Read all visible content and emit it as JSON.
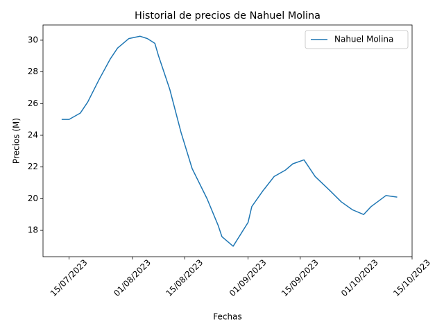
{
  "chart_data": {
    "type": "line",
    "title": "Historial de precios de Nahuel Molina",
    "x_label": "Fechas",
    "y_label": "Precios (M)",
    "x": [
      "2023-07-13",
      "2023-07-15",
      "2023-07-18",
      "2023-07-20",
      "2023-07-23",
      "2023-07-26",
      "2023-07-28",
      "2023-07-31",
      "2023-08-03",
      "2023-08-05",
      "2023-08-07",
      "2023-08-08",
      "2023-08-11",
      "2023-08-14",
      "2023-08-17",
      "2023-08-21",
      "2023-08-24",
      "2023-08-25",
      "2023-08-28",
      "2023-09-01",
      "2023-09-02",
      "2023-09-05",
      "2023-09-08",
      "2023-09-11",
      "2023-09-13",
      "2023-09-16",
      "2023-09-19",
      "2023-09-23",
      "2023-09-26",
      "2023-09-29",
      "2023-10-02",
      "2023-10-04",
      "2023-10-08",
      "2023-10-11"
    ],
    "series": [
      {
        "name": "Nahuel Molina",
        "color": "#1f77b4",
        "values": [
          25.0,
          25.0,
          25.4,
          26.1,
          27.5,
          28.8,
          29.5,
          30.1,
          30.25,
          30.1,
          29.8,
          29.0,
          26.9,
          24.2,
          21.9,
          20.0,
          18.3,
          17.6,
          17.0,
          18.5,
          19.5,
          20.5,
          21.4,
          21.8,
          22.2,
          22.45,
          21.4,
          20.5,
          19.8,
          19.3,
          19.0,
          19.5,
          20.2,
          20.1
        ]
      }
    ],
    "xlim": [
      "2023-07-08",
      "2023-10-15"
    ],
    "xticks": [
      {
        "value": "2023-07-15",
        "label": "15/07/2023"
      },
      {
        "value": "2023-08-01",
        "label": "01/08/2023"
      },
      {
        "value": "2023-08-15",
        "label": "15/08/2023"
      },
      {
        "value": "2023-09-01",
        "label": "01/09/2023"
      },
      {
        "value": "2023-09-15",
        "label": "15/09/2023"
      },
      {
        "value": "2023-10-01",
        "label": "01/10/2023"
      },
      {
        "value": "2023-10-15",
        "label": "15/10/2023"
      }
    ],
    "ylim": [
      16.34,
      30.96
    ],
    "yticks": [
      18,
      20,
      22,
      24,
      26,
      28,
      30
    ],
    "grid": false,
    "legend": "upper right"
  }
}
